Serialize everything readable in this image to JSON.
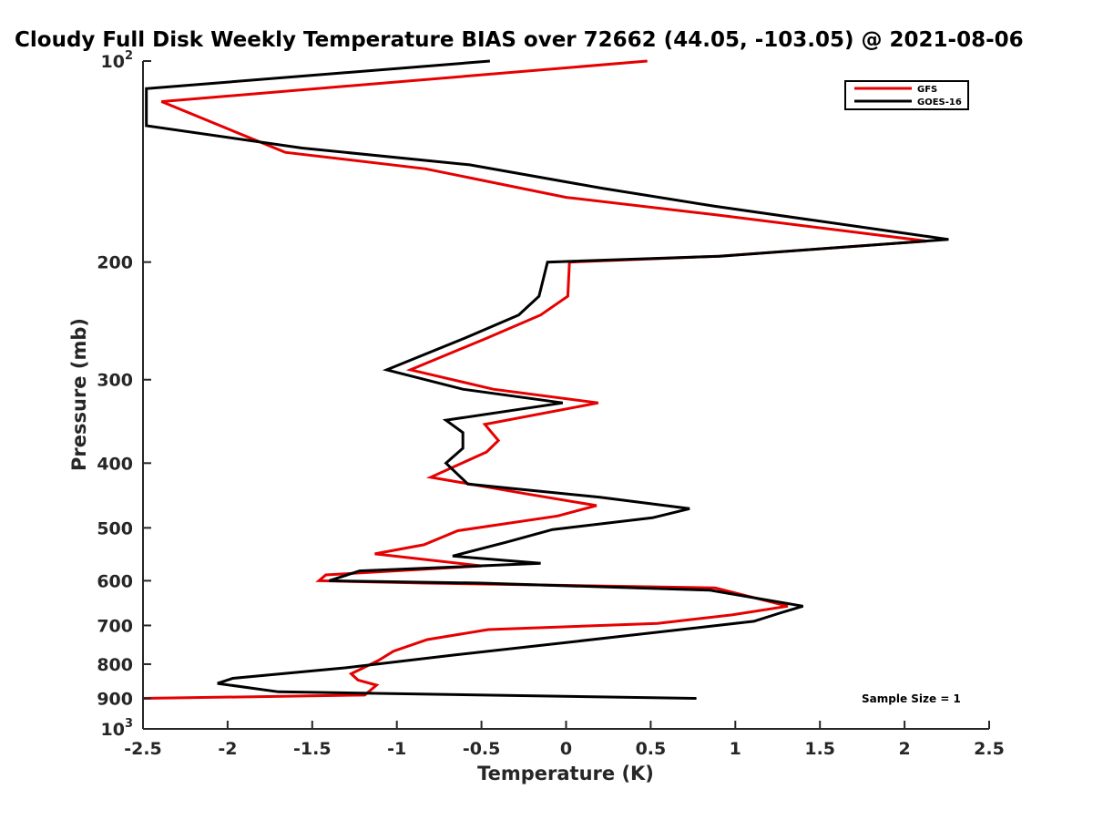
{
  "chart_data": {
    "type": "line",
    "title": "Cloudy Full Disk Weekly Temperature BIAS over 72662 (44.05, -103.05) @ 2021-08-06",
    "xlabel": "Temperature (K)",
    "ylabel": "Pressure (mb)",
    "xlim": [
      -2.5,
      2.5
    ],
    "ylim": [
      100,
      1000
    ],
    "y_scale": "log",
    "y_reversed": true,
    "x_ticks": [
      "-2.5",
      "-2",
      "-1.5",
      "-1",
      "-0.5",
      "0",
      "0.5",
      "1",
      "1.5",
      "2",
      "2.5"
    ],
    "x_tick_values": [
      -2.5,
      -2,
      -1.5,
      -1,
      -0.5,
      0,
      0.5,
      1,
      1.5,
      2,
      2.5
    ],
    "y_ticks": [
      {
        "value": 100,
        "base": "10",
        "exp": "2"
      },
      {
        "value": 200,
        "label": "200"
      },
      {
        "value": 300,
        "label": "300"
      },
      {
        "value": 400,
        "label": "400"
      },
      {
        "value": 500,
        "label": "500"
      },
      {
        "value": 600,
        "label": "600"
      },
      {
        "value": 700,
        "label": "700"
      },
      {
        "value": 800,
        "label": "800"
      },
      {
        "value": 900,
        "label": "900"
      },
      {
        "value": 1000,
        "base": "10",
        "exp": "3"
      }
    ],
    "legend_position": "top-right",
    "grid": false,
    "annotation": "Sample Size = 1",
    "series": [
      {
        "name": "GFS",
        "color": "#e60000",
        "points": [
          [
            0.48,
            100
          ],
          [
            -2.39,
            115
          ],
          [
            -1.66,
            137
          ],
          [
            -0.83,
            145
          ],
          [
            0.0,
            160
          ],
          [
            0.89,
            170
          ],
          [
            2.13,
            186
          ],
          [
            0.9,
            196
          ],
          [
            0.02,
            200
          ],
          [
            0.01,
            225
          ],
          [
            -0.15,
            240
          ],
          [
            -0.47,
            260
          ],
          [
            -0.92,
            290
          ],
          [
            -0.43,
            310
          ],
          [
            0.19,
            325
          ],
          [
            -0.48,
            350
          ],
          [
            -0.4,
            370
          ],
          [
            -0.47,
            385
          ],
          [
            -0.8,
            420
          ],
          [
            -0.23,
            445
          ],
          [
            0.18,
            463
          ],
          [
            -0.05,
            480
          ],
          [
            -0.64,
            505
          ],
          [
            -0.84,
            530
          ],
          [
            -1.13,
            547
          ],
          [
            -0.5,
            570
          ],
          [
            -1.42,
            588
          ],
          [
            -1.46,
            600
          ],
          [
            -0.83,
            605
          ],
          [
            0.88,
            615
          ],
          [
            1.31,
            655
          ],
          [
            0.98,
            675
          ],
          [
            0.54,
            695
          ],
          [
            -0.46,
            710
          ],
          [
            -0.82,
            735
          ],
          [
            -1.02,
            765
          ],
          [
            -1.11,
            790
          ],
          [
            -1.27,
            827
          ],
          [
            -1.23,
            845
          ],
          [
            -1.12,
            860
          ],
          [
            -1.19,
            890
          ],
          [
            -2.5,
            900
          ]
        ]
      },
      {
        "name": "GOES-16",
        "color": "#000000",
        "points": [
          [
            -0.45,
            100
          ],
          [
            -2.48,
            110
          ],
          [
            -2.48,
            125
          ],
          [
            -1.56,
            135
          ],
          [
            -0.57,
            143
          ],
          [
            0.21,
            155
          ],
          [
            0.88,
            165
          ],
          [
            2.26,
            185
          ],
          [
            0.91,
            196
          ],
          [
            -0.11,
            200
          ],
          [
            -0.16,
            225
          ],
          [
            -0.28,
            240
          ],
          [
            -0.6,
            260
          ],
          [
            -1.06,
            290
          ],
          [
            -0.61,
            310
          ],
          [
            -0.02,
            325
          ],
          [
            -0.71,
            345
          ],
          [
            -0.61,
            360
          ],
          [
            -0.61,
            380
          ],
          [
            -0.71,
            400
          ],
          [
            -0.58,
            430
          ],
          [
            0.2,
            450
          ],
          [
            0.73,
            468
          ],
          [
            0.51,
            483
          ],
          [
            -0.08,
            503
          ],
          [
            -0.35,
            525
          ],
          [
            -0.67,
            551
          ],
          [
            -0.15,
            565
          ],
          [
            -1.22,
            580
          ],
          [
            -1.4,
            600
          ],
          [
            -0.5,
            605
          ],
          [
            0.85,
            620
          ],
          [
            1.4,
            655
          ],
          [
            1.27,
            670
          ],
          [
            1.11,
            690
          ],
          [
            0.26,
            730
          ],
          [
            -0.66,
            775
          ],
          [
            -1.3,
            810
          ],
          [
            -1.97,
            840
          ],
          [
            -2.06,
            855
          ],
          [
            -1.7,
            880
          ],
          [
            0.77,
            900
          ]
        ]
      }
    ]
  }
}
